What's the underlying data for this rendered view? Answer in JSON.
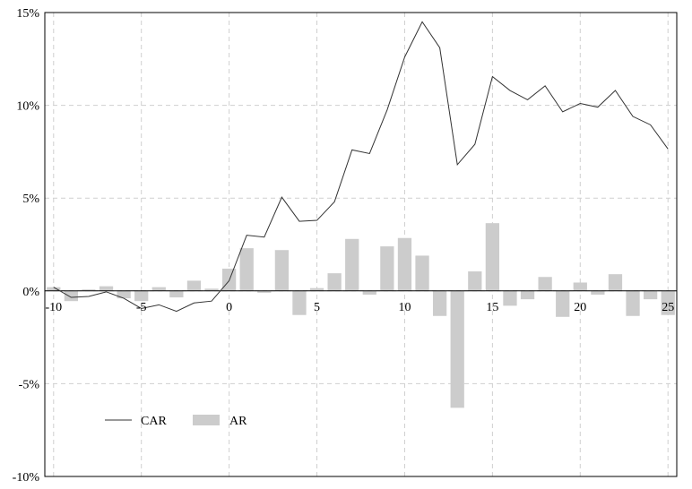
{
  "chart_data": {
    "type": "bar+line",
    "title": "",
    "xlabel": "",
    "ylabel": "",
    "xlim": [
      -10.5,
      25.5
    ],
    "ylim": [
      -0.1,
      0.15
    ],
    "x_ticks": [
      -10,
      -5,
      0,
      5,
      10,
      15,
      20,
      25
    ],
    "x_tick_labels": [
      "-10",
      "-5",
      "0",
      "5",
      "10",
      "15",
      "20",
      "25"
    ],
    "y_ticks": [
      -0.1,
      -0.05,
      0,
      0.05,
      0.1,
      0.15
    ],
    "y_tick_labels": [
      "-10%",
      "-5%",
      "0%",
      "5%",
      "10%",
      "15%"
    ],
    "grid": true,
    "legend_position": "lower-left",
    "x": [
      -10,
      -9,
      -8,
      -7,
      -6,
      -5,
      -4,
      -3,
      -2,
      -1,
      0,
      1,
      2,
      3,
      4,
      5,
      6,
      7,
      8,
      9,
      10,
      11,
      12,
      13,
      14,
      15,
      16,
      17,
      18,
      19,
      20,
      21,
      22,
      23,
      24,
      25
    ],
    "series": [
      {
        "name": "CAR",
        "kind": "line",
        "color": "#333333",
        "values": [
          0.002,
          -0.0035,
          -0.003,
          -0.0005,
          -0.004,
          -0.0095,
          -0.0075,
          -0.011,
          -0.0065,
          -0.0055,
          0.0055,
          0.03,
          0.029,
          0.0505,
          0.0375,
          0.038,
          0.048,
          0.076,
          0.074,
          0.0975,
          0.126,
          0.145,
          0.131,
          0.068,
          0.079,
          0.1155,
          0.108,
          0.103,
          0.1105,
          0.0965,
          0.101,
          0.099,
          0.108,
          0.094,
          0.0895,
          0.0765
        ]
      },
      {
        "name": "AR",
        "kind": "bar",
        "color": "#cccccc",
        "values": [
          0.002,
          -0.0055,
          0.0008,
          0.0025,
          -0.004,
          -0.0055,
          0.002,
          -0.0035,
          0.0055,
          0.0012,
          0.012,
          0.023,
          -0.001,
          0.022,
          -0.013,
          0.0015,
          0.0095,
          0.028,
          -0.002,
          0.024,
          0.0285,
          0.019,
          -0.0135,
          -0.063,
          0.0105,
          0.0365,
          -0.008,
          -0.0045,
          0.0075,
          -0.014,
          0.0045,
          -0.002,
          0.009,
          -0.0135,
          -0.0045,
          -0.013
        ]
      }
    ]
  }
}
